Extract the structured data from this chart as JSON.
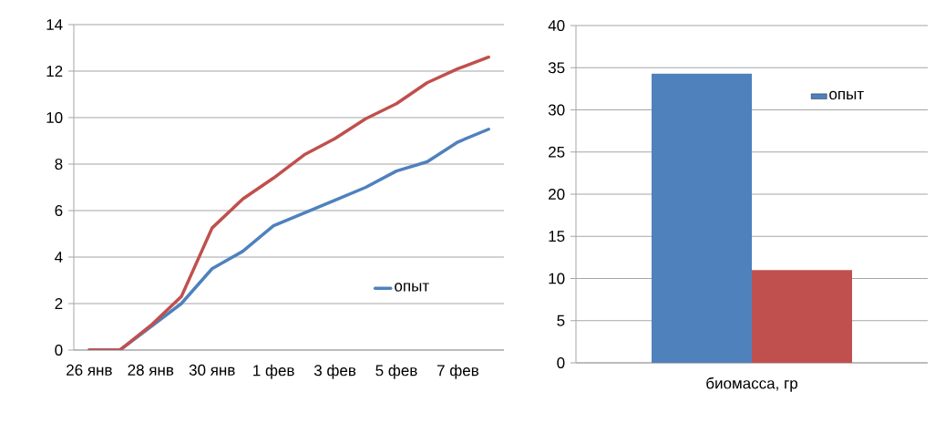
{
  "chart_data": [
    {
      "type": "line",
      "categories": [
        "26 янв",
        null,
        "28 янв",
        null,
        "30 янв",
        null,
        "1 фев",
        null,
        "3 фев",
        null,
        "5 фев",
        null,
        "7 фев",
        null
      ],
      "series": [
        {
          "name": "опыт",
          "color": "#4f81bd",
          "values": [
            0,
            0,
            1.0,
            2.0,
            3.5,
            4.25,
            5.35,
            5.9,
            6.45,
            7.0,
            7.7,
            8.1,
            8.95,
            9.5
          ]
        },
        {
          "color": "#c0504d",
          "values": [
            0,
            0,
            1.05,
            2.3,
            5.25,
            6.5,
            7.4,
            8.4,
            9.1,
            9.95,
            10.6,
            11.5,
            12.1,
            12.6
          ]
        }
      ],
      "ylim": [
        0,
        14
      ],
      "yticks": [
        0,
        2,
        4,
        6,
        8,
        10,
        12,
        14
      ],
      "grid": "y",
      "legend": "bottom right",
      "marker": "none",
      "line_style": "solid"
    },
    {
      "type": "bar",
      "categories": [
        "биомасса, гр"
      ],
      "series": [
        {
          "name": "опыт",
          "color": "#4f81bd",
          "values": [
            34.3
          ]
        },
        {
          "color": "#c0504d",
          "values": [
            11
          ]
        }
      ],
      "ylim": [
        0,
        40
      ],
      "yticks": [
        0,
        5,
        10,
        15,
        20,
        25,
        30,
        35,
        40
      ],
      "grid": "y",
      "legend": "top right"
    }
  ]
}
